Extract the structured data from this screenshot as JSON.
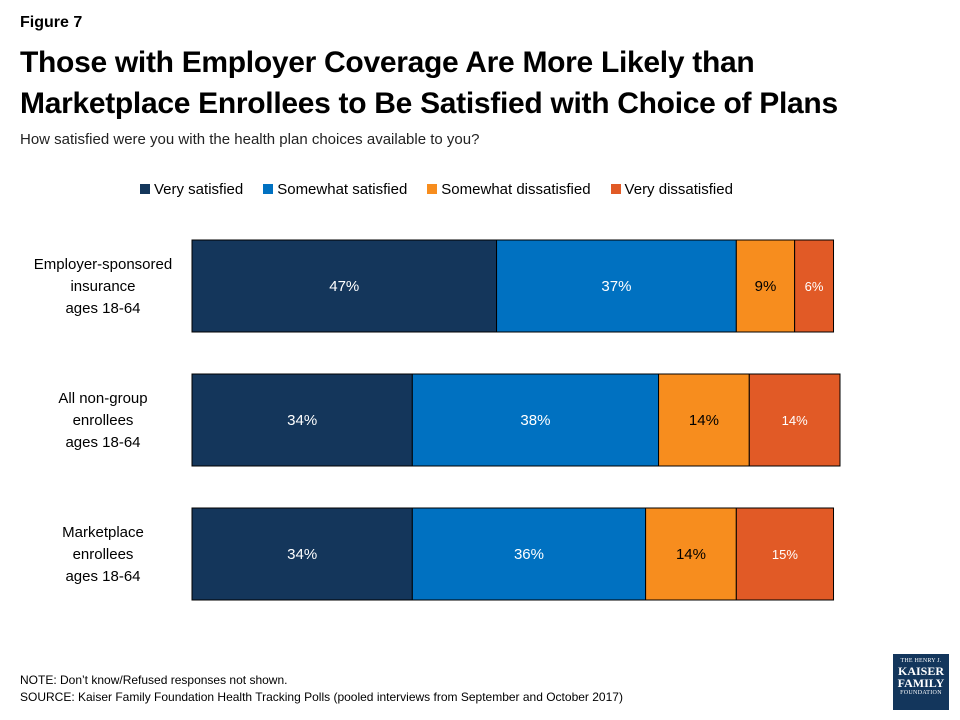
{
  "figure_label": "Figure 7",
  "title": "Those with Employer Coverage Are More Likely than Marketplace Enrollees to Be Satisfied with Choice of Plans",
  "subtitle": "How satisfied were you with the health plan choices available to you?",
  "note": "NOTE: Don’t know/Refused responses not shown.",
  "source": "SOURCE: Kaiser Family Foundation Health Tracking Polls (pooled interviews from September and October 2017)",
  "logo": {
    "line1": "THE HENRY J.",
    "line2": "KAISER",
    "line3": "FAMILY",
    "line4": "FOUNDATION"
  },
  "colors": {
    "very_satisfied": "#14365b",
    "somewhat_satisfied": "#0071c1",
    "somewhat_dissatisfied": "#f78d1e",
    "very_dissatisfied": "#e15a26"
  },
  "chart_data": {
    "type": "bar",
    "orientation": "horizontal",
    "stacked": true,
    "title": "",
    "xlabel": "",
    "ylabel": "",
    "xlim": [
      0,
      100
    ],
    "legend_position": "top",
    "grid": false,
    "categories": [
      [
        "Employer-sponsored",
        "insurance",
        "ages 18-64"
      ],
      [
        "All non-group",
        "enrollees",
        "ages 18-64"
      ],
      [
        "Marketplace",
        "enrollees",
        "ages 18-64"
      ]
    ],
    "series": [
      {
        "name": "Very satisfied",
        "color": "#14365b",
        "values": [
          47,
          34,
          34
        ],
        "labels": [
          "47%",
          "34%",
          "34%"
        ]
      },
      {
        "name": "Somewhat satisfied",
        "color": "#0071c1",
        "values": [
          37,
          38,
          36
        ],
        "labels": [
          "37%",
          "38%",
          "36%"
        ]
      },
      {
        "name": "Somewhat dissatisfied",
        "color": "#f78d1e",
        "values": [
          9,
          14,
          14
        ],
        "labels": [
          "9%",
          "14%",
          "14%"
        ]
      },
      {
        "name": "Very dissatisfied",
        "color": "#e15a26",
        "values": [
          6,
          14,
          15
        ],
        "labels": [
          "6%",
          "14%",
          "15%"
        ]
      }
    ]
  }
}
